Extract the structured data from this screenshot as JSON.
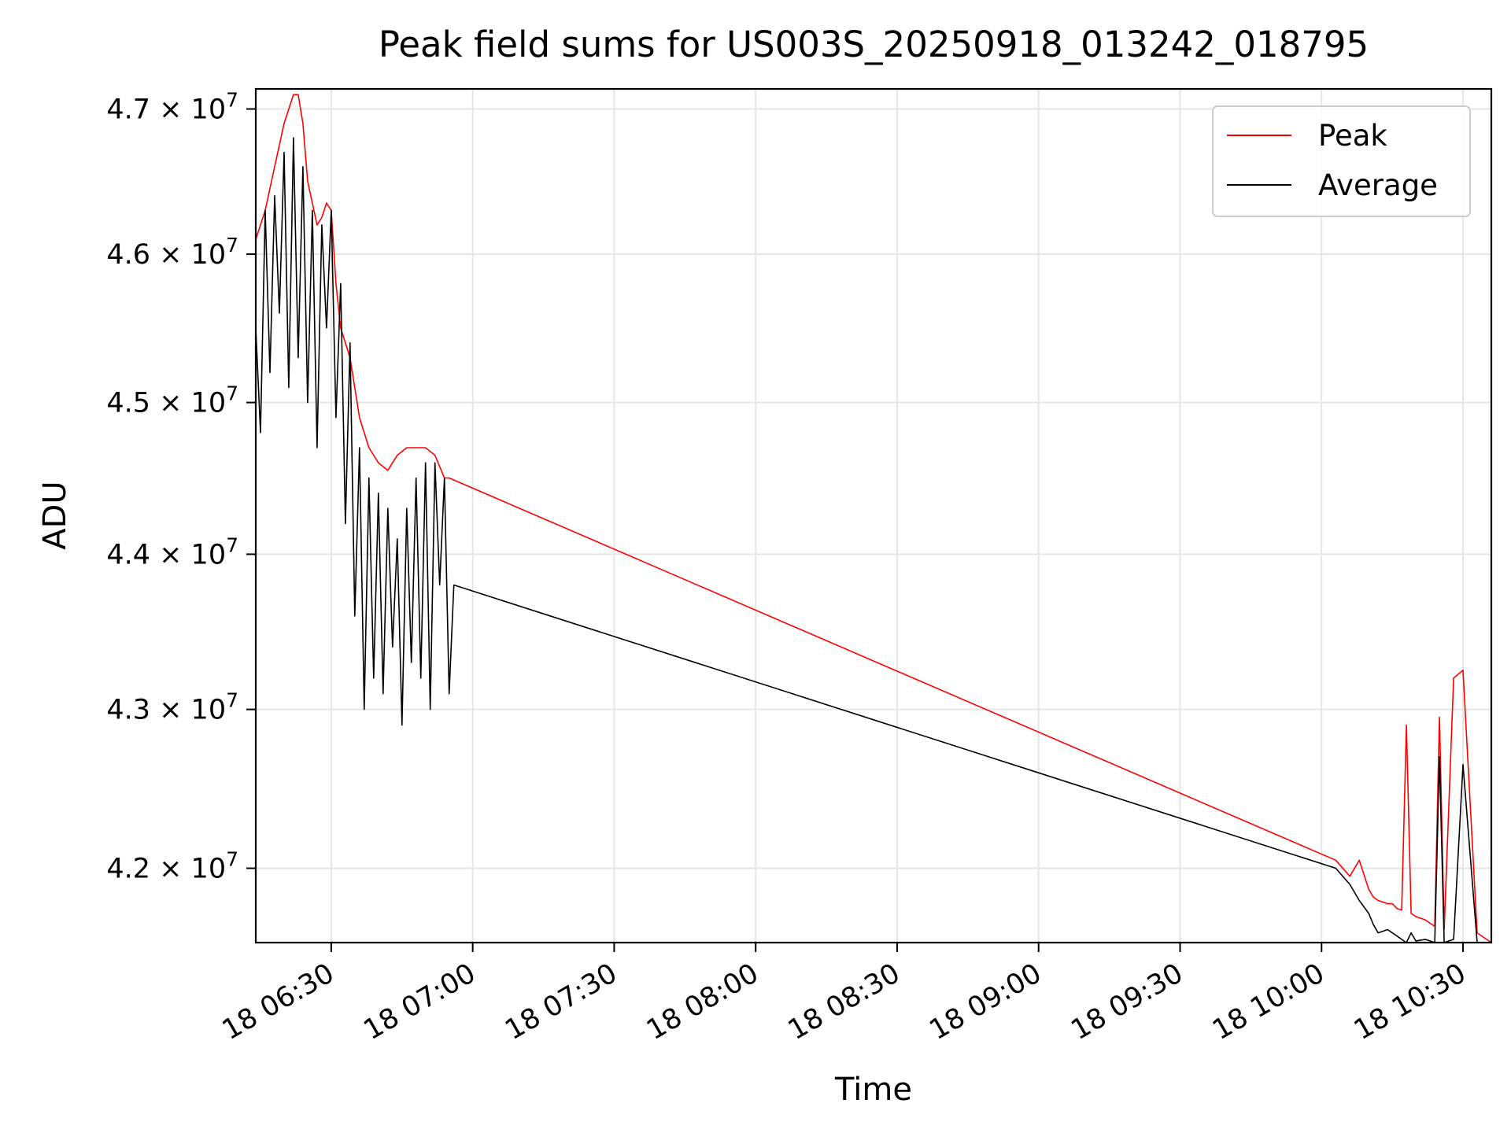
{
  "chart_data": {
    "type": "line",
    "title": "Peak field sums for US003S_20250918_013242_018795",
    "xlabel": "Time",
    "ylabel": "ADU",
    "x_range": [
      "2025-09-18 06:14",
      "2025-09-18 10:36"
    ],
    "y_range": [
      41540000,
      47140000
    ],
    "x_ticks": [
      "18 06:30",
      "18 07:00",
      "18 07:30",
      "18 08:00",
      "18 08:30",
      "18 09:00",
      "18 09:30",
      "18 10:00",
      "18 10:30"
    ],
    "y_ticks": [
      {
        "value": 42000000,
        "mantissa": "4.2",
        "exponent": "7"
      },
      {
        "value": 43000000,
        "mantissa": "4.3",
        "exponent": "7"
      },
      {
        "value": 44000000,
        "mantissa": "4.4",
        "exponent": "7"
      },
      {
        "value": 45000000,
        "mantissa": "4.5",
        "exponent": "7"
      },
      {
        "value": 46000000,
        "mantissa": "4.6",
        "exponent": "7"
      },
      {
        "value": 47000000,
        "mantissa": "4.7",
        "exponent": "7"
      }
    ],
    "y_scale": "log",
    "grid": true,
    "legend_position": "top-right",
    "series": [
      {
        "name": "Peak",
        "color": "#ff0000",
        "x": [
          "06:14",
          "06:16",
          "06:18",
          "06:20",
          "06:22",
          "06:23",
          "06:24",
          "06:25",
          "06:27",
          "06:28",
          "06:29",
          "06:30",
          "06:31",
          "06:32",
          "06:34",
          "06:36",
          "06:38",
          "06:40",
          "06:42",
          "06:44",
          "06:46",
          "06:48",
          "06:50",
          "06:52",
          "06:54",
          "06:55",
          "10:03",
          "10:06",
          "10:08",
          "10:10",
          "10:11",
          "10:12",
          "10:13",
          "10:14",
          "10:15",
          "10:16",
          "10:17",
          "10:18",
          "10:19",
          "10:20",
          "10:22",
          "10:23",
          "10:24",
          "10:25",
          "10:26",
          "10:28",
          "10:30",
          "10:33",
          "10:35",
          "10:36"
        ],
        "y": [
          46100000,
          46300000,
          46600000,
          46900000,
          47100000,
          47100000,
          46900000,
          46500000,
          46200000,
          46250000,
          46350000,
          46300000,
          45800000,
          45500000,
          45300000,
          44900000,
          44700000,
          44600000,
          44550000,
          44650000,
          44700000,
          44700000,
          44700000,
          44650000,
          44500000,
          44500000,
          42050000,
          41950000,
          42050000,
          41870000,
          41820000,
          41800000,
          41790000,
          41780000,
          41780000,
          41750000,
          41740000,
          42900000,
          41720000,
          41700000,
          41680000,
          41660000,
          41640000,
          42950000,
          41620000,
          43200000,
          43250000,
          41600000,
          41560000,
          41540000
        ]
      },
      {
        "name": "Average",
        "color": "#000000",
        "x": [
          "06:14",
          "06:15",
          "06:16",
          "06:17",
          "06:18",
          "06:19",
          "06:20",
          "06:21",
          "06:22",
          "06:23",
          "06:24",
          "06:25",
          "06:26",
          "06:27",
          "06:28",
          "06:29",
          "06:30",
          "06:31",
          "06:32",
          "06:33",
          "06:34",
          "06:35",
          "06:36",
          "06:37",
          "06:38",
          "06:39",
          "06:40",
          "06:41",
          "06:42",
          "06:43",
          "06:44",
          "06:45",
          "06:46",
          "06:47",
          "06:48",
          "06:49",
          "06:50",
          "06:51",
          "06:52",
          "06:53",
          "06:54",
          "06:55",
          "06:56",
          "10:03",
          "10:06",
          "10:08",
          "10:10",
          "10:11",
          "10:12",
          "10:14",
          "10:16",
          "10:17",
          "10:18",
          "10:19",
          "10:20",
          "10:22",
          "10:24",
          "10:25",
          "10:26",
          "10:28",
          "10:30",
          "10:33",
          "10:34",
          "10:36"
        ],
        "y": [
          45500000,
          44800000,
          46300000,
          45200000,
          46400000,
          45600000,
          46700000,
          45100000,
          46800000,
          45300000,
          46600000,
          45000000,
          46300000,
          44700000,
          46200000,
          45500000,
          46300000,
          44900000,
          45800000,
          44200000,
          45400000,
          43600000,
          44700000,
          43000000,
          44500000,
          43200000,
          44400000,
          43100000,
          44300000,
          43400000,
          44100000,
          42900000,
          44300000,
          43300000,
          44500000,
          43200000,
          44600000,
          43000000,
          44600000,
          43800000,
          44500000,
          43100000,
          43800000,
          42000000,
          41900000,
          41800000,
          41720000,
          41650000,
          41600000,
          41620000,
          41580000,
          41560000,
          41540000,
          41600000,
          41550000,
          41560000,
          41540000,
          42700000,
          41540000,
          41560000,
          42650000,
          41540000,
          41540000,
          41540000
        ]
      }
    ]
  }
}
